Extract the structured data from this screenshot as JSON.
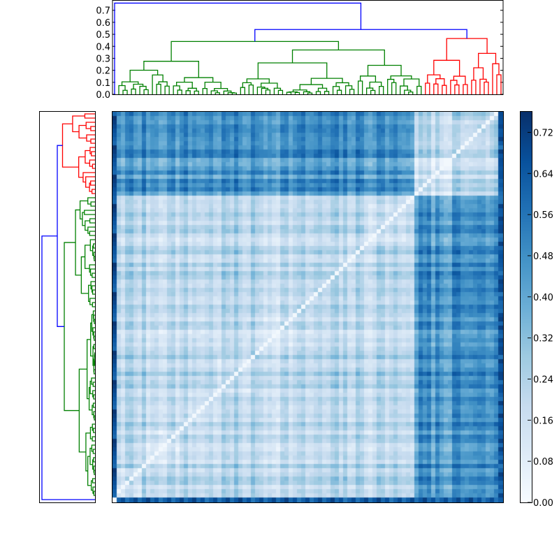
{
  "chart_data": {
    "type": "heatmap",
    "title": "",
    "description": "Clustered distance matrix heatmap with hierarchical dendrograms on top and left",
    "colormap": "Blues",
    "n_items": 93,
    "diagonal_value": 0.0,
    "colorbar": {
      "min": 0.0,
      "max": 0.76,
      "ticks": [
        0.0,
        0.08,
        0.16,
        0.24,
        0.32,
        0.4,
        0.48,
        0.56,
        0.64,
        0.72
      ],
      "tick_labels": [
        "0.00",
        "0.08",
        "0.16",
        "0.24",
        "0.32",
        "0.40",
        "0.48",
        "0.56",
        "0.64",
        "0.72"
      ]
    },
    "top_dendrogram": {
      "ylim": [
        0.0,
        0.78
      ],
      "ytick_labels": [
        "0.0",
        "0.1",
        "0.2",
        "0.3",
        "0.4",
        "0.5",
        "0.6",
        "0.7"
      ],
      "yticks": [
        0.0,
        0.1,
        0.2,
        0.3,
        0.4,
        0.5,
        0.6,
        0.7
      ],
      "clusters": [
        {
          "name": "green",
          "color": "#008000",
          "leaf_fraction": [
            0.0,
            0.785
          ],
          "merge_height": 0.44
        },
        {
          "name": "red",
          "color": "#ff0000",
          "leaf_fraction": [
            0.785,
            1.0
          ],
          "merge_height": 0.465
        }
      ],
      "root_links": [
        {
          "color": "#0000ff",
          "height": 0.54,
          "joins": [
            "green",
            "red"
          ]
        },
        {
          "color": "#0000ff",
          "height": 0.76,
          "joins": [
            "outlier",
            "green+red"
          ]
        }
      ]
    },
    "left_dendrogram": {
      "clusters": [
        {
          "name": "red",
          "color": "#ff0000",
          "leaf_fraction": [
            0.0,
            0.215
          ]
        },
        {
          "name": "green",
          "color": "#008000",
          "leaf_fraction": [
            0.215,
            0.995
          ]
        }
      ],
      "root_links": [
        {
          "color": "#0000ff",
          "height": 0.54
        },
        {
          "color": "#0000ff",
          "height": 0.76
        }
      ]
    },
    "block_structure": {
      "red_block_order_index": [
        72,
        92
      ],
      "green_block_order_index": [
        0,
        72
      ],
      "within_red_mean": 0.18,
      "within_green_mean": 0.24,
      "between_red_green_mean": 0.5,
      "outlier_row_mean": 0.62
    }
  },
  "colors": {
    "blue_link": "#0000ff",
    "green_cluster": "#008000",
    "red_cluster": "#ff0000",
    "axis": "#000000"
  }
}
